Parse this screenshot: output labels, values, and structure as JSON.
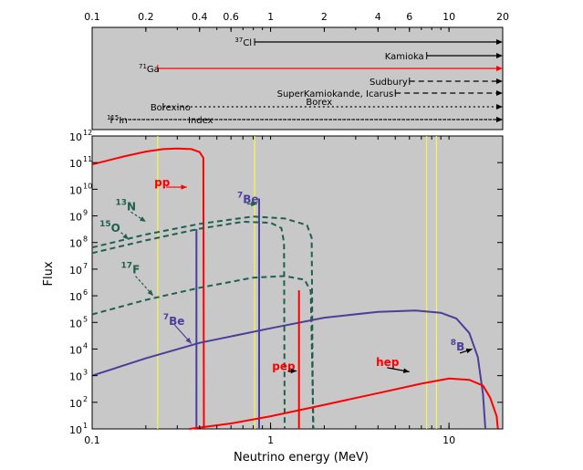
{
  "chart_data": {
    "type": "line",
    "xlabel": "Neutrino energy (MeV)",
    "ylabel": "Flux",
    "x_scale": "log",
    "y_scale": "log",
    "xlim": [
      0.1,
      20
    ],
    "ylim": [
      10,
      1000000000000.0
    ],
    "bottom_x_ticks": [
      {
        "value": 0.1,
        "label": "0.1"
      },
      {
        "value": 1,
        "label": "1"
      },
      {
        "value": 10,
        "label": "10"
      }
    ],
    "top_x_ticks": [
      {
        "value": 0.1,
        "label": "0.1"
      },
      {
        "value": 0.2,
        "label": "0.2"
      },
      {
        "value": 0.4,
        "label": "0.4"
      },
      {
        "value": 0.6,
        "label": "0.6"
      },
      {
        "value": 1,
        "label": "1"
      },
      {
        "value": 2,
        "label": "2"
      },
      {
        "value": 4,
        "label": "4"
      },
      {
        "value": 6,
        "label": "6"
      },
      {
        "value": 10,
        "label": "10"
      },
      {
        "value": 20,
        "label": "20"
      }
    ],
    "y_ticks": [
      {
        "value": 1000000000000.0,
        "mantissa": "10",
        "exp": "12"
      },
      {
        "value": 100000000000.0,
        "mantissa": "10",
        "exp": "11"
      },
      {
        "value": 10000000000.0,
        "mantissa": "10",
        "exp": "10"
      },
      {
        "value": 1000000000.0,
        "mantissa": "10",
        "exp": "9"
      },
      {
        "value": 100000000.0,
        "mantissa": "10",
        "exp": "8"
      },
      {
        "value": 10000000.0,
        "mantissa": "10",
        "exp": "7"
      },
      {
        "value": 1000000.0,
        "mantissa": "10",
        "exp": "6"
      },
      {
        "value": 100000.0,
        "mantissa": "10",
        "exp": "5"
      },
      {
        "value": 10000.0,
        "mantissa": "10",
        "exp": "4"
      },
      {
        "value": 1000.0,
        "mantissa": "10",
        "exp": "3"
      },
      {
        "value": 100.0,
        "mantissa": "10",
        "exp": "2"
      },
      {
        "value": 10.0,
        "mantissa": "10",
        "exp": "1"
      }
    ],
    "threshold_lines_energy": [
      0.233,
      0.814,
      7.5,
      8.5
    ],
    "detectors": [
      {
        "label": "Cl",
        "superscript": "37",
        "threshold": 0.814,
        "max": 20,
        "style": "solid",
        "color": "#000000"
      },
      {
        "label": "Kamioka",
        "threshold": 7.5,
        "max": 20,
        "style": "solid",
        "color": "#000000"
      },
      {
        "label": "Ga",
        "superscript": "71",
        "threshold": 0.233,
        "max": 20,
        "style": "solid",
        "color": "#ff0000"
      },
      {
        "label": "Sudbury",
        "threshold": 6.0,
        "max": 20,
        "style": "dashed",
        "color": "#000000"
      },
      {
        "label": "SuperKamiokande, Icarus",
        "threshold": 5.0,
        "max": 20,
        "style": "dashed",
        "color": "#000000"
      },
      {
        "label": "Borexino",
        "threshold": 0.25,
        "max": 20,
        "style": "dotted",
        "color": "#000000"
      },
      {
        "label": "Borex",
        "threshold": 2.0,
        "max": 20,
        "style": "dotted",
        "color": "#000000"
      },
      {
        "label": "Index",
        "threshold": 0.128,
        "max": 20,
        "style": "dotted",
        "color": "#000000"
      },
      {
        "label": "In",
        "superscript": "115",
        "threshold": 0.128,
        "max": 20,
        "style": "dotted",
        "color": "#000000"
      }
    ],
    "series": [
      {
        "name": "pp",
        "color": "#ff0000",
        "style": "solid",
        "points": [
          [
            0.1,
            85000000000.0
          ],
          [
            0.15,
            170000000000.0
          ],
          [
            0.2,
            260000000000.0
          ],
          [
            0.25,
            320000000000.0
          ],
          [
            0.3,
            340000000000.0
          ],
          [
            0.36,
            320000000000.0
          ],
          [
            0.4,
            250000000000.0
          ],
          [
            0.42,
            150000000000.0
          ],
          [
            0.423,
            10
          ]
        ]
      },
      {
        "name": "7Be line 0.384 MeV",
        "color": "#4b3f99",
        "style": "solid",
        "points": [
          [
            0.384,
            10
          ],
          [
            0.384,
            320000000.0
          ]
        ]
      },
      {
        "name": "7Be line 0.862 MeV",
        "color": "#4b3f99",
        "style": "solid",
        "points": [
          [
            0.862,
            10
          ],
          [
            0.862,
            4500000000.0
          ]
        ]
      },
      {
        "name": "13N",
        "color": "#1f5f4f",
        "style": "dashed",
        "points": [
          [
            0.1,
            40000000.0
          ],
          [
            0.2,
            120000000.0
          ],
          [
            0.4,
            330000000.0
          ],
          [
            0.7,
            600000000.0
          ],
          [
            1.0,
            550000000.0
          ],
          [
            1.15,
            350000000.0
          ],
          [
            1.19,
            100000000.0
          ],
          [
            1.2,
            10
          ]
        ]
      },
      {
        "name": "15O",
        "color": "#1f5f4f",
        "style": "dashed",
        "points": [
          [
            0.1,
            65000000.0
          ],
          [
            0.2,
            200000000.0
          ],
          [
            0.4,
            500000000.0
          ],
          [
            0.8,
            950000000.0
          ],
          [
            1.2,
            800000000.0
          ],
          [
            1.6,
            450000000.0
          ],
          [
            1.7,
            150000000.0
          ],
          [
            1.73,
            10
          ]
        ]
      },
      {
        "name": "17F",
        "color": "#1f5f4f",
        "style": "dashed",
        "points": [
          [
            0.1,
            200000.0
          ],
          [
            0.2,
            700000.0
          ],
          [
            0.4,
            2000000.0
          ],
          [
            0.8,
            4800000.0
          ],
          [
            1.2,
            5500000.0
          ],
          [
            1.55,
            4000000.0
          ],
          [
            1.68,
            1500000.0
          ],
          [
            1.74,
            10
          ]
        ]
      },
      {
        "name": "8B",
        "color": "#4b3f99",
        "style": "solid",
        "points": [
          [
            0.1,
            1000.0
          ],
          [
            0.2,
            4500.0
          ],
          [
            0.4,
            17000.0
          ],
          [
            1.0,
            60000.0
          ],
          [
            2.0,
            150000.0
          ],
          [
            4.0,
            250000.0
          ],
          [
            6.5,
            280000.0
          ],
          [
            9.0,
            230000.0
          ],
          [
            11.0,
            140000.0
          ],
          [
            13.0,
            40000.0
          ],
          [
            14.5,
            5000.0
          ],
          [
            15.5,
            200.0
          ],
          [
            16.0,
            10
          ]
        ]
      },
      {
        "name": "pep",
        "color": "#ff0000",
        "style": "solid",
        "points": [
          [
            1.442,
            10
          ],
          [
            1.442,
            1600000.0
          ]
        ]
      },
      {
        "name": "hep",
        "color": "#ff0000",
        "style": "solid",
        "points": [
          [
            0.35,
            10
          ],
          [
            0.6,
            16
          ],
          [
            1.0,
            30
          ],
          [
            2.0,
            80
          ],
          [
            4.0,
            220
          ],
          [
            7.0,
            500
          ],
          [
            10.0,
            780
          ],
          [
            13.0,
            700
          ],
          [
            15.5,
            420
          ],
          [
            17.0,
            150
          ],
          [
            18.5,
            30
          ],
          [
            18.8,
            10
          ]
        ]
      }
    ],
    "annotations": [
      {
        "text": "pp",
        "color": "#ff0000",
        "e": 0.223,
        "f": 13000000000.0
      },
      {
        "text": "Be",
        "superscript": "7",
        "color": "#4b3f99",
        "e": 0.65,
        "f": 3000000000.0
      },
      {
        "text": "N",
        "superscript": "13",
        "color": "#1f5f4f",
        "e": 0.135,
        "f": 1600000000.0
      },
      {
        "text": "O",
        "superscript": "15",
        "color": "#1f5f4f",
        "e": 0.11,
        "f": 250000000.0
      },
      {
        "text": "F",
        "superscript": "17",
        "color": "#1f5f4f",
        "e": 0.145,
        "f": 7000000.0
      },
      {
        "text": "Be",
        "superscript": "7",
        "color": "#4b3f99",
        "e": 0.25,
        "f": 80000.0
      },
      {
        "text": "B",
        "superscript": "8",
        "color": "#4b3f99",
        "e": 10.2,
        "f": 9000.0
      },
      {
        "text": "pep",
        "color": "#ff0000",
        "e": 1.02,
        "f": 1600.0
      },
      {
        "text": "hep",
        "color": "#ff0000",
        "e": 3.9,
        "f": 2300.0
      }
    ]
  }
}
